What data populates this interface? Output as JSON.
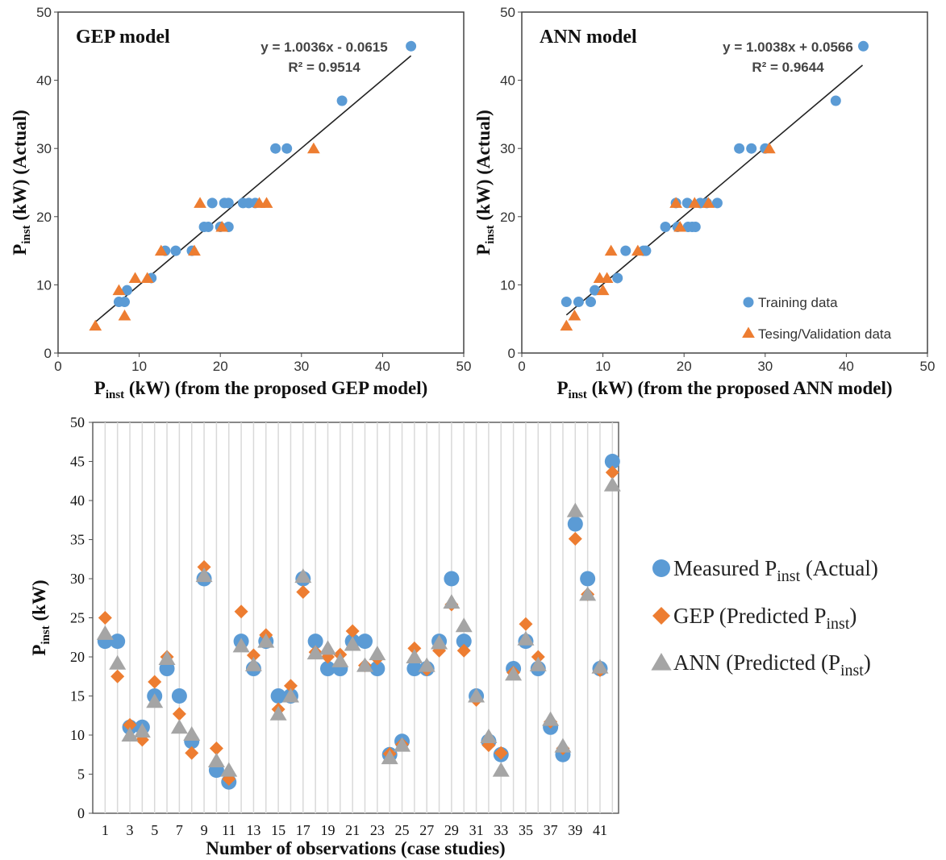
{
  "colors": {
    "measured": "#5B9BD5",
    "gep": "#ED7D31",
    "ann": "#A5A5A5",
    "trend": "#222222"
  },
  "chart_data": [
    {
      "type": "scatter",
      "panel_label": "GEP model",
      "xlabel_main": "P",
      "xlabel_sub": "inst",
      "xlabel_rest": " (kW) (from the proposed GEP model)",
      "ylabel_main": "P",
      "ylabel_sub": "inst",
      "ylabel_rest": " (kW) (Actual)",
      "xlim": [
        0,
        50
      ],
      "ylim": [
        0,
        50
      ],
      "xticks": [
        "0",
        "10",
        "20",
        "30",
        "40",
        "50"
      ],
      "yticks": [
        "0",
        "10",
        "20",
        "30",
        "40",
        "50"
      ],
      "equation": "y = 1.0036x - 0.0615",
      "r2": "R² = 0.9514",
      "trendline": {
        "slope": 1.0036,
        "intercept": -0.0615,
        "x_from": 4.5,
        "x_to": 43.5
      },
      "series": [
        {
          "name": "Training data",
          "marker": "circle",
          "points": [
            [
              7.5,
              7.5
            ],
            [
              8.2,
              7.5
            ],
            [
              8.5,
              9.2
            ],
            [
              11.5,
              11
            ],
            [
              13.2,
              15
            ],
            [
              14.5,
              15
            ],
            [
              16.5,
              15
            ],
            [
              18,
              18.5
            ],
            [
              18.5,
              18.5
            ],
            [
              19,
              22
            ],
            [
              20,
              18.5
            ],
            [
              20.5,
              22
            ],
            [
              21,
              22
            ],
            [
              21,
              18.5
            ],
            [
              22.8,
              22
            ],
            [
              23.5,
              22
            ],
            [
              24.3,
              22
            ],
            [
              26.8,
              30
            ],
            [
              28.2,
              30
            ],
            [
              35,
              37
            ],
            [
              43.5,
              45
            ]
          ]
        },
        {
          "name": "Tesing/Validation data",
          "marker": "triangle",
          "points": [
            [
              4.6,
              4
            ],
            [
              7.5,
              9.2
            ],
            [
              8.2,
              5.5
            ],
            [
              9.5,
              11
            ],
            [
              11,
              11
            ],
            [
              12.7,
              15
            ],
            [
              16.8,
              15
            ],
            [
              17.5,
              22
            ],
            [
              20.2,
              18.5
            ],
            [
              24.8,
              22
            ],
            [
              25.7,
              22
            ],
            [
              31.5,
              30
            ]
          ]
        }
      ]
    },
    {
      "type": "scatter",
      "panel_label": "ANN model",
      "xlabel_main": "P",
      "xlabel_sub": "inst",
      "xlabel_rest": " (kW) (from the proposed ANN model)",
      "ylabel_main": "P",
      "ylabel_sub": "inst",
      "ylabel_rest": " (kW) (Actual)",
      "xlim": [
        0,
        50
      ],
      "ylim": [
        0,
        50
      ],
      "xticks": [
        "0",
        "10",
        "20",
        "30",
        "40",
        "50"
      ],
      "yticks": [
        "0",
        "10",
        "20",
        "30",
        "40",
        "50"
      ],
      "equation": "y = 1.0038x + 0.0566",
      "r2": "R² = 0.9644",
      "trendline": {
        "slope": 1.0038,
        "intercept": 0.0566,
        "x_from": 5.5,
        "x_to": 42
      },
      "legend": [
        "Training data",
        "Tesing/Validation data"
      ],
      "legend_position": "bottom-right",
      "series": [
        {
          "name": "Training data",
          "marker": "circle",
          "points": [
            [
              5.5,
              7.5
            ],
            [
              7,
              7.5
            ],
            [
              8.5,
              7.5
            ],
            [
              9,
              9.2
            ],
            [
              11.8,
              11
            ],
            [
              12.8,
              15
            ],
            [
              15,
              15
            ],
            [
              15.3,
              15
            ],
            [
              17.7,
              18.5
            ],
            [
              19,
              22
            ],
            [
              19.2,
              18.5
            ],
            [
              20.4,
              22
            ],
            [
              20.5,
              18.5
            ],
            [
              21,
              18.5
            ],
            [
              21.4,
              18.5
            ],
            [
              22,
              22
            ],
            [
              22.8,
              22
            ],
            [
              24.1,
              22
            ],
            [
              26.8,
              30
            ],
            [
              28.3,
              30
            ],
            [
              30,
              30
            ],
            [
              38.7,
              37
            ],
            [
              42.1,
              45
            ]
          ]
        },
        {
          "name": "Tesing/Validation data",
          "marker": "triangle",
          "points": [
            [
              5.5,
              4
            ],
            [
              6.5,
              5.5
            ],
            [
              9.6,
              11
            ],
            [
              10,
              9.2
            ],
            [
              10.5,
              11
            ],
            [
              11,
              15
            ],
            [
              14.3,
              15
            ],
            [
              19,
              22
            ],
            [
              19.5,
              18.5
            ],
            [
              21.3,
              22
            ],
            [
              23,
              22
            ],
            [
              30.5,
              30
            ]
          ]
        }
      ]
    },
    {
      "type": "scatter",
      "ylabel_main": "P",
      "ylabel_sub": "inst",
      "ylabel_rest": " (kW)",
      "xlabel": "Number of observations (case studies)",
      "ylim": [
        0,
        50
      ],
      "yticks": [
        "0",
        "5",
        "10",
        "15",
        "20",
        "25",
        "30",
        "35",
        "40",
        "45",
        "50"
      ],
      "x": [
        1,
        2,
        3,
        4,
        5,
        6,
        7,
        8,
        9,
        10,
        11,
        12,
        13,
        14,
        15,
        16,
        17,
        18,
        19,
        20,
        21,
        22,
        23,
        24,
        25,
        26,
        27,
        28,
        29,
        30,
        31,
        32,
        33,
        34,
        35,
        36,
        37,
        38,
        39,
        40,
        41,
        42
      ],
      "xtick_labels": [
        "1",
        "3",
        "5",
        "7",
        "9",
        "11",
        "13",
        "15",
        "17",
        "19",
        "21",
        "23",
        "25",
        "27",
        "29",
        "31",
        "33",
        "35",
        "37",
        "39",
        "41"
      ],
      "legend_position": "right",
      "legend": [
        {
          "main": "Measured P",
          "sub": "inst",
          "rest": "  (Actual)"
        },
        {
          "main": "GEP (Predicted P",
          "sub": "inst",
          "rest": ")"
        },
        {
          "main": "ANN (Predicted (P",
          "sub": "inst",
          "rest": ")"
        }
      ],
      "series": [
        {
          "name": "Measured Pinst (Actual)",
          "marker": "circle",
          "values": [
            22,
            22,
            11,
            11,
            15,
            18.5,
            15,
            9.2,
            30,
            5.5,
            4,
            22,
            18.5,
            22,
            15,
            15,
            30,
            22,
            18.5,
            18.5,
            22,
            22,
            18.5,
            7.5,
            9.2,
            18.5,
            18.5,
            22,
            30,
            22,
            15,
            9.2,
            7.5,
            18.5,
            22,
            18.5,
            11,
            7.5,
            37,
            30,
            18.5,
            45
          ]
        },
        {
          "name": "GEP (Predicted Pinst)",
          "marker": "diamond",
          "values": [
            25,
            17.5,
            11.3,
            9.4,
            16.8,
            20,
            12.7,
            7.7,
            31.5,
            8.3,
            4.4,
            25.8,
            20.2,
            22.8,
            13.3,
            16.3,
            28.3,
            20.6,
            20,
            20.3,
            23.3,
            18.9,
            19.8,
            7.6,
            8.8,
            21.1,
            18.4,
            20.8,
            26.7,
            20.8,
            14.5,
            8.7,
            7.7,
            18,
            24.2,
            20,
            11.7,
            8.3,
            35.1,
            28,
            18.3,
            43.6
          ]
        },
        {
          "name": "ANN (Predicted (Pinst)",
          "marker": "triangle",
          "values": [
            23,
            19.2,
            10,
            10.5,
            14.3,
            19.8,
            11,
            10.1,
            30.4,
            6.7,
            5.5,
            21.4,
            19,
            22,
            12.7,
            15,
            30.3,
            20.5,
            21.1,
            19.5,
            21.6,
            18.9,
            20.4,
            7.1,
            8.7,
            20,
            18.9,
            21.8,
            27,
            24,
            15,
            9.8,
            5.5,
            17.8,
            22.3,
            19,
            12,
            8.6,
            38.7,
            28,
            18.7,
            42
          ]
        }
      ]
    }
  ]
}
